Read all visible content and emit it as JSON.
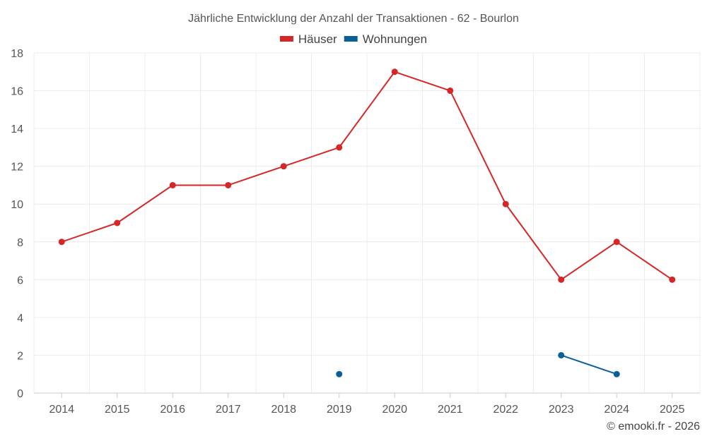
{
  "chart_data": {
    "type": "line",
    "title": "Jährliche Entwicklung der Anzahl der Transaktionen - 62 - Bourlon",
    "x": [
      "2014",
      "2015",
      "2016",
      "2017",
      "2018",
      "2019",
      "2020",
      "2021",
      "2022",
      "2023",
      "2024",
      "2025"
    ],
    "ylim": [
      0,
      18
    ],
    "yticks": [
      0,
      2,
      4,
      6,
      8,
      10,
      12,
      14,
      16,
      18
    ],
    "grid": true,
    "legend_position": "top-center",
    "series": [
      {
        "name": "Häuser",
        "color": "#d62728",
        "values": [
          8,
          9,
          11,
          11,
          12,
          13,
          17,
          16,
          10,
          6,
          8,
          6
        ]
      },
      {
        "name": "Wohnungen",
        "color": "#0a5f96",
        "values": [
          null,
          null,
          null,
          null,
          null,
          1,
          null,
          null,
          null,
          2,
          1,
          null
        ]
      }
    ]
  },
  "credit": "© emooki.fr - 2026"
}
